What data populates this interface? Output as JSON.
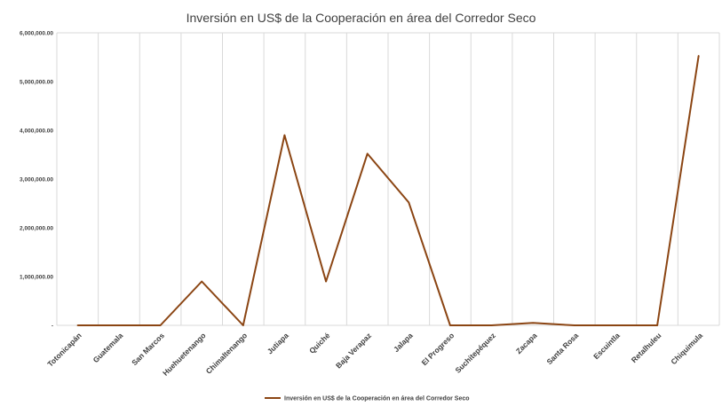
{
  "chart_data": {
    "type": "line",
    "title": "Inversión en US$ de la Cooperación en área del Corredor Seco",
    "xlabel": "",
    "ylabel": "",
    "categories": [
      "Totonicapán",
      "Guatemala",
      "San Marcos",
      "Huehuetenango",
      "Chimaltenango",
      "Jutiapa",
      "Quiché",
      "Baja Verapaz",
      "Jalapa",
      "El Progreso",
      "Suchitepéquez",
      "Zacapa",
      "Santa Rosa",
      "Escuintla",
      "Retalhuleu",
      "Chiquimula"
    ],
    "series": [
      {
        "name": "Inversión en US$ de la Cooperación en área del Corredor Seco",
        "values": [
          0,
          0,
          0,
          900000,
          0,
          3900000,
          900000,
          3520000,
          2520000,
          0,
          0,
          50000,
          0,
          0,
          0,
          5530000
        ],
        "color": "#8B4513"
      }
    ],
    "ylim": [
      0,
      6000000
    ],
    "yticks": [
      0,
      1000000,
      2000000,
      3000000,
      4000000,
      5000000,
      6000000
    ],
    "ytick_labels": [
      "-",
      "1,000,000.00",
      "2,000,000.00",
      "3,000,000.00",
      "4,000,000.00",
      "5,000,000.00",
      "6,000,000.00"
    ],
    "grid": "vertical",
    "legend": "bottom"
  }
}
